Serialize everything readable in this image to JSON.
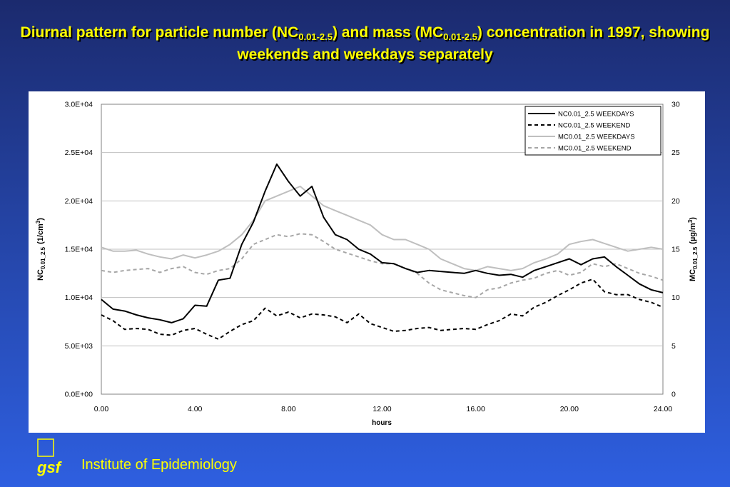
{
  "title": {
    "part1": "Diurnal pattern for particle number (NC",
    "sub1": "0.01-2.5",
    "part2": ") and mass (MC",
    "sub2": "0.01-2.5",
    "part3": ") concentration in 1997, showing weekends and weekdays separately"
  },
  "institute": "Institute of Epidemiology",
  "logo_text": "gsf",
  "colors": {
    "nc_weekdays": "#000000",
    "nc_weekend": "#000000",
    "mc_weekdays": "#bfbfbf",
    "mc_weekend": "#a6a6a6"
  },
  "chart_data": {
    "type": "line",
    "xlabel": "hours",
    "xlim": [
      0,
      24
    ],
    "x_ticks": [
      "0.00",
      "4.00",
      "8.00",
      "12.00",
      "16.00",
      "20.00",
      "24.00"
    ],
    "x_tick_values": [
      0,
      4,
      8,
      12,
      16,
      20,
      24
    ],
    "ylabel_left": {
      "main": "NC",
      "sub": "0.01_2.5",
      "unit": "(1/cm",
      "sup": "3",
      "close": ")"
    },
    "ylabel_right": {
      "main": "MC",
      "sub": "0.01_2.5",
      "unit": "(µg/m",
      "sup": "3",
      "close": ")"
    },
    "ylim_left": [
      0,
      30000
    ],
    "ylim_right": [
      0,
      30
    ],
    "y_ticks_left": [
      "0.0E+00",
      "5.0E+03",
      "1.0E+04",
      "1.5E+04",
      "2.0E+04",
      "2.5E+04",
      "3.0E+04"
    ],
    "y_ticks_right": [
      "0",
      "5",
      "10",
      "15",
      "20",
      "25",
      "30"
    ],
    "legend_position": "top-right",
    "legend": [
      "NC0.01_2.5 WEEKDAYS",
      "NC0.01_2.5 WEEKEND",
      "MC0.01_2.5 WEEKDAYS",
      "MC0.01_2.5 WEEKEND"
    ],
    "x": [
      0,
      0.5,
      1,
      1.5,
      2,
      2.5,
      3,
      3.5,
      4,
      4.5,
      5,
      5.5,
      6,
      6.5,
      7,
      7.5,
      8,
      8.5,
      9,
      9.5,
      10,
      10.5,
      11,
      11.5,
      12,
      12.5,
      13,
      13.5,
      14,
      14.5,
      15,
      15.5,
      16,
      16.5,
      17,
      17.5,
      18,
      18.5,
      19,
      19.5,
      20,
      20.5,
      21,
      21.5,
      22,
      22.5,
      23,
      23.5,
      24
    ],
    "series": [
      {
        "name": "NC0.01_2.5 WEEKDAYS",
        "axis": "left",
        "style": "solid",
        "values": [
          9800,
          8800,
          8600,
          8200,
          7900,
          7700,
          7400,
          7800,
          9200,
          9100,
          11800,
          12000,
          15500,
          17800,
          21000,
          23800,
          22000,
          20500,
          21500,
          18300,
          16500,
          16000,
          15000,
          14500,
          13600,
          13500,
          13000,
          12600,
          12800,
          12700,
          12600,
          12500,
          12800,
          12500,
          12300,
          12400,
          12100,
          12800,
          13200,
          13600,
          14000,
          13400,
          14000,
          14200,
          13200,
          12300,
          11400,
          10800,
          10500
        ]
      },
      {
        "name": "NC0.01_2.5 WEEKEND",
        "axis": "left",
        "style": "dash",
        "values": [
          8200,
          7600,
          6700,
          6800,
          6700,
          6200,
          6100,
          6600,
          6800,
          6200,
          5700,
          6500,
          7200,
          7600,
          8900,
          8100,
          8500,
          7900,
          8300,
          8200,
          8000,
          7400,
          8300,
          7300,
          6900,
          6500,
          6600,
          6800,
          6900,
          6600,
          6700,
          6800,
          6700,
          7200,
          7600,
          8300,
          8100,
          9000,
          9500,
          10200,
          10800,
          11500,
          11900,
          10600,
          10300,
          10300,
          9800,
          9500,
          9000
        ]
      },
      {
        "name": "MC0.01_2.5 WEEKDAYS",
        "axis": "right",
        "style": "solid",
        "values": [
          15.2,
          14.8,
          14.8,
          14.9,
          14.5,
          14.2,
          14.0,
          14.4,
          14.1,
          14.4,
          14.8,
          15.5,
          16.5,
          18.0,
          20.0,
          20.5,
          21.0,
          21.5,
          20.5,
          19.5,
          19.0,
          18.5,
          18.0,
          17.5,
          16.5,
          16.0,
          16.0,
          15.5,
          15.0,
          14.0,
          13.5,
          13.0,
          12.8,
          13.2,
          13.0,
          12.8,
          13.0,
          13.6,
          14.0,
          14.5,
          15.5,
          15.8,
          16.0,
          15.6,
          15.2,
          14.8,
          15.0,
          15.2,
          15.0
        ]
      },
      {
        "name": "MC0.01_2.5 WEEKEND",
        "axis": "right",
        "style": "dash",
        "values": [
          12.8,
          12.6,
          12.8,
          12.9,
          13.0,
          12.6,
          13.0,
          13.2,
          12.6,
          12.4,
          12.8,
          13.0,
          14.0,
          15.5,
          16.0,
          16.5,
          16.3,
          16.6,
          16.5,
          15.8,
          15.0,
          14.6,
          14.2,
          13.8,
          13.5,
          13.5,
          13.0,
          12.5,
          11.5,
          10.8,
          10.5,
          10.2,
          10.0,
          10.8,
          11.0,
          11.5,
          11.8,
          12.0,
          12.5,
          12.8,
          12.3,
          12.6,
          13.5,
          13.2,
          13.5,
          13.0,
          12.5,
          12.2,
          11.8
        ]
      }
    ]
  }
}
